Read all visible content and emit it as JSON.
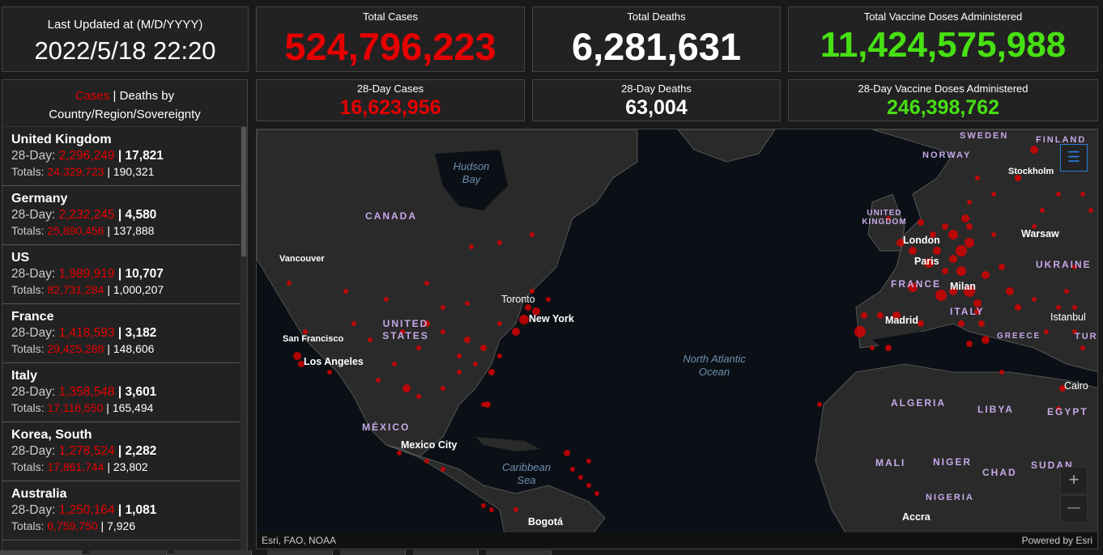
{
  "header": {
    "last_updated_label": "Last Updated at (M/D/YYYY)",
    "last_updated_value": "2022/5/18 22:20",
    "total_cases_label": "Total Cases",
    "total_cases": "524,796,223",
    "total_deaths_label": "Total Deaths",
    "total_deaths": "6,281,631",
    "total_vaccine_label": "Total Vaccine Doses Administered",
    "total_vaccine": "11,424,575,988",
    "cases28_label": "28-Day Cases",
    "cases28": "16,623,956",
    "deaths28_label": "28-Day Deaths",
    "deaths28": "63,004",
    "vaccine28_label": "28-Day Vaccine Doses Administered",
    "vaccine28": "246,398,762"
  },
  "list": {
    "tab_cases": "Cases",
    "separator": " | ",
    "tab_deaths": "Deaths by",
    "subtitle": "Country/Region/Sovereignty",
    "day_label": "28-Day: ",
    "totals_label": "Totals: ",
    "bar": " | ",
    "items": [
      {
        "name": "United Kingdom",
        "c28": "2,296,249",
        "d28": "17,821",
        "ct": "24,329,723",
        "dt": "190,321"
      },
      {
        "name": "Germany",
        "c28": "2,232,245",
        "d28": "4,580",
        "ct": "25,890,456",
        "dt": "137,888"
      },
      {
        "name": "US",
        "c28": "1,989,919",
        "d28": "10,707",
        "ct": "82,731,284",
        "dt": "1,000,207"
      },
      {
        "name": "France",
        "c28": "1,418,593",
        "d28": "3,182",
        "ct": "29,425,288",
        "dt": "148,606"
      },
      {
        "name": "Italy",
        "c28": "1,358,548",
        "d28": "3,601",
        "ct": "17,116,550",
        "dt": "165,494"
      },
      {
        "name": "Korea, South",
        "c28": "1,278,524",
        "d28": "2,282",
        "ct": "17,861,744",
        "dt": "23,802"
      },
      {
        "name": "Australia",
        "c28": "1,250,164",
        "d28": "1,081",
        "ct": "6,759,750",
        "dt": "7,926"
      }
    ]
  },
  "map": {
    "labels": {
      "canada": "CANADA",
      "united_states": "UNITED STATES",
      "mexico": "MÉXICO",
      "hudson": "Hudson Bay",
      "atlantic": "North Atlantic Ocean",
      "caribbean": "Caribbean Sea",
      "vancouver": "Vancouver",
      "sanfrancisco": "San Francisco",
      "losangeles": "Los Angeles",
      "toronto": "Toronto",
      "newyork": "New York",
      "mexicocity": "Mexico City",
      "bogota": "Bogotá",
      "uk": "UNITED KINGDOM",
      "london": "London",
      "paris": "Paris",
      "france": "FRANCE",
      "milan": "Milan",
      "italy": "ITALY",
      "madrid": "Madrid",
      "warsaw": "Warsaw",
      "ukraine": "UKRAINE",
      "stockholm": "Stockholm",
      "sweden": "SWEDEN",
      "finland": "FINLAND",
      "norway": "NORWAY",
      "istanbul": "Istanbul",
      "greece": "GREECE",
      "turkey": "TURKI",
      "cairo": "Cairo",
      "egypt": "EGYPT",
      "algeria": "ALGERIA",
      "libya": "LIBYA",
      "mali": "MALI",
      "niger": "NIGER",
      "chad": "CHAD",
      "sudan": "SUDAN",
      "nigeria": "NIGERIA",
      "accra": "Accra"
    },
    "attribution": "Esri, FAO, NOAA",
    "powered": "Powered by Esri",
    "zoom_in": "+",
    "zoom_out": "—",
    "list_icon": "legend-list-icon"
  }
}
